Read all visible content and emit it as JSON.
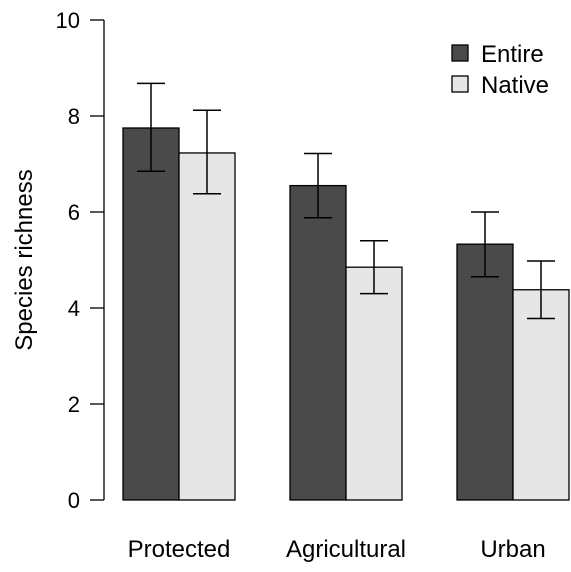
{
  "chart_data": {
    "type": "bar",
    "title": "",
    "xlabel": "",
    "ylabel": "Species richness",
    "ylim": [
      0,
      10
    ],
    "yticks": [
      0,
      2,
      4,
      6,
      8,
      10
    ],
    "grid": false,
    "legend_position": "top-right",
    "categories": [
      "Protected",
      "Agricultural",
      "Urban"
    ],
    "series": [
      {
        "name": "Entire",
        "color": "#4a4a4a",
        "values": [
          7.75,
          6.55,
          5.33
        ],
        "error_low": [
          6.85,
          5.88,
          4.65
        ],
        "error_high": [
          8.68,
          7.22,
          6.0
        ]
      },
      {
        "name": "Native",
        "color": "#e6e6e6",
        "values": [
          7.23,
          4.85,
          4.38
        ],
        "error_low": [
          6.38,
          4.3,
          3.78
        ],
        "error_high": [
          8.12,
          5.4,
          4.98
        ]
      }
    ]
  }
}
